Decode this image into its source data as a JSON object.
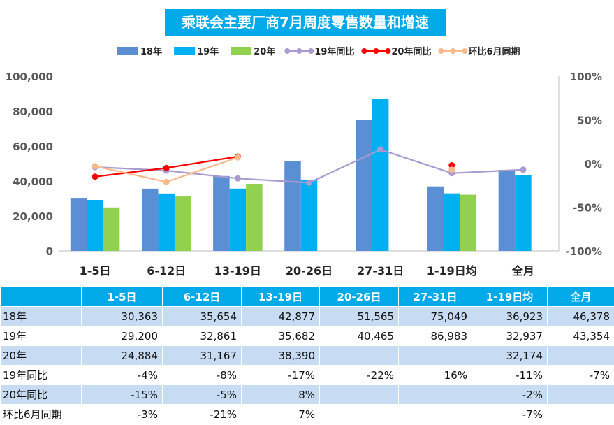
{
  "chart_data": {
    "type": "bar",
    "title": "乘联会主要厂商7月周度零售数量和增速",
    "categories": [
      "1-5日",
      "6-12日",
      "13-19日",
      "20-26日",
      "27-31日",
      "1-19日均",
      "全月"
    ],
    "ylim": [
      0,
      100000
    ],
    "y2lim": [
      -100,
      100
    ],
    "y_ticks": [
      "100,000",
      "80,000",
      "60,000",
      "40,000",
      "20,000",
      "0"
    ],
    "y2_ticks": [
      "100%",
      "50%",
      "0%",
      "-50%",
      "-100%"
    ],
    "legend_position": "top",
    "series": [
      {
        "name": "18年",
        "kind": "bar",
        "color": "#5b8fd5",
        "values": [
          30363,
          35654,
          42877,
          51565,
          75049,
          36923,
          46378
        ]
      },
      {
        "name": "19年",
        "kind": "bar",
        "color": "#00b0f0",
        "values": [
          29200,
          32861,
          35682,
          40465,
          86983,
          32937,
          43354
        ]
      },
      {
        "name": "20年",
        "kind": "bar",
        "color": "#92d050",
        "values": [
          24884,
          31167,
          38390,
          null,
          null,
          32174,
          null
        ]
      },
      {
        "name": "19年同比",
        "kind": "line",
        "axis": "right",
        "color": "#a99bcf",
        "values": [
          -4,
          -8,
          -17,
          -22,
          16,
          -11,
          -7
        ]
      },
      {
        "name": "20年同比",
        "kind": "line",
        "axis": "right",
        "color": "#ff0000",
        "values": [
          -15,
          -5,
          8,
          null,
          null,
          -2,
          null
        ]
      },
      {
        "name": "环比6月同期",
        "kind": "line",
        "axis": "right",
        "color": "#f8b98c",
        "values": [
          -3,
          -21,
          7,
          null,
          null,
          -7,
          null
        ]
      }
    ]
  },
  "table": {
    "headers": [
      "1-5日",
      "6-12日",
      "13-19日",
      "20-26日",
      "27-31日",
      "1-19日均",
      "全月"
    ],
    "rows": [
      {
        "label": "18年",
        "cells": [
          "30,363",
          "35,654",
          "42,877",
          "51,565",
          "75,049",
          "36,923",
          "46,378"
        ]
      },
      {
        "label": "19年",
        "cells": [
          "29,200",
          "32,861",
          "35,682",
          "40,465",
          "86,983",
          "32,937",
          "43,354"
        ]
      },
      {
        "label": "20年",
        "cells": [
          "24,884",
          "31,167",
          "38,390",
          "",
          "",
          "32,174",
          ""
        ]
      },
      {
        "label": "19年同比",
        "cells": [
          "-4%",
          "-8%",
          "-17%",
          "-22%",
          "16%",
          "-11%",
          "-7%"
        ]
      },
      {
        "label": "20年同比",
        "cells": [
          "-15%",
          "-5%",
          "8%",
          "",
          "",
          "-2%",
          ""
        ]
      },
      {
        "label": "环比6月同期",
        "cells": [
          "-3%",
          "-21%",
          "7%",
          "",
          "",
          "-7%",
          ""
        ]
      }
    ]
  }
}
